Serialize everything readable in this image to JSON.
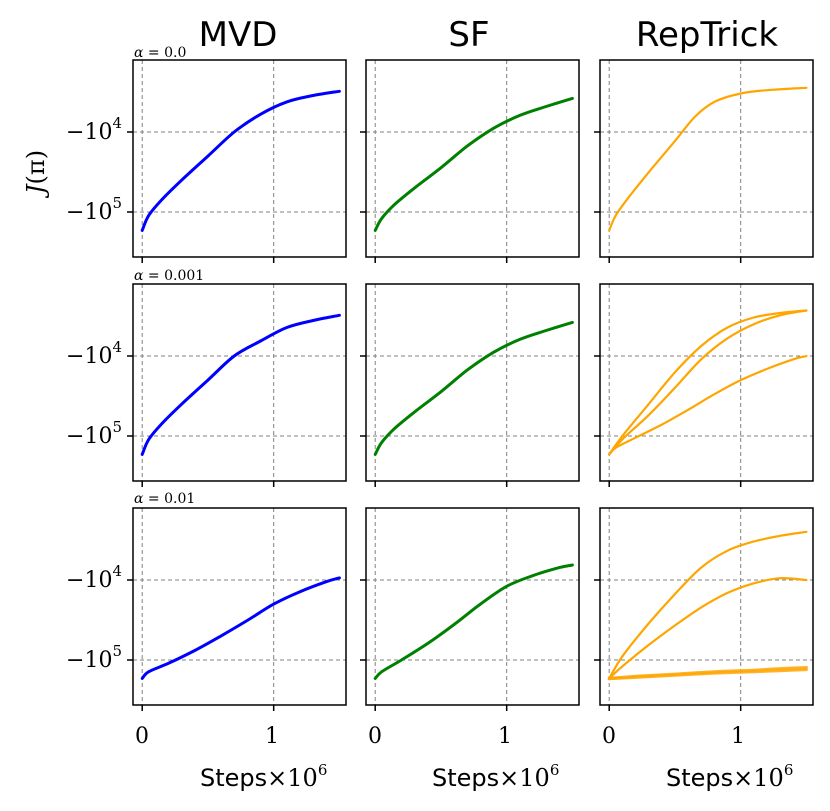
{
  "figure": {
    "column_titles": [
      "MVD",
      "SF",
      "RepTrick"
    ],
    "row_labels": [
      {
        "symbol": "α",
        "text": " = 0.0"
      },
      {
        "symbol": "α",
        "text": " = 0.001"
      },
      {
        "symbol": "α",
        "text": " = 0.01"
      }
    ],
    "ylabel": {
      "main": "J",
      "arg": "(π)"
    },
    "xlabel": {
      "main": "Steps",
      "times": "×10",
      "exp": "6"
    },
    "y_ticks": [
      {
        "base": "−10",
        "exp": "4",
        "value": -10000
      },
      {
        "base": "−10",
        "exp": "5",
        "value": -100000
      }
    ],
    "x_ticks": [
      "0",
      "1"
    ]
  },
  "colors": {
    "MVD": "#0000ff",
    "SF": "#008000",
    "RepTrick": "#ffa500",
    "grid": "#808080"
  },
  "chart_data": {
    "type": "line",
    "grid": true,
    "y_scale": "symlog",
    "x_unit": "Steps ×10^6",
    "xlim": [
      -0.07,
      1.55
    ],
    "panels": [
      {
        "row": 0,
        "col": 0,
        "series": [
          {
            "values": [
              [
                0,
                -170000
              ],
              [
                0.05,
                -110000
              ],
              [
                0.15,
                -70000
              ],
              [
                0.3,
                -40000
              ],
              [
                0.5,
                -20000
              ],
              [
                0.7,
                -10000
              ],
              [
                0.9,
                -6000
              ],
              [
                1.1,
                -4200
              ],
              [
                1.3,
                -3500
              ],
              [
                1.5,
                -3100
              ]
            ]
          }
        ]
      },
      {
        "row": 0,
        "col": 1,
        "series": [
          {
            "values": [
              [
                0,
                -170000
              ],
              [
                0.05,
                -120000
              ],
              [
                0.15,
                -80000
              ],
              [
                0.3,
                -50000
              ],
              [
                0.5,
                -28000
              ],
              [
                0.7,
                -15000
              ],
              [
                0.9,
                -9000
              ],
              [
                1.1,
                -6200
              ],
              [
                1.3,
                -4800
              ],
              [
                1.5,
                -3800
              ]
            ]
          }
        ]
      },
      {
        "row": 0,
        "col": 2,
        "series": [
          {
            "values": [
              [
                0,
                -170000
              ],
              [
                0.05,
                -110000
              ],
              [
                0.15,
                -65000
              ],
              [
                0.3,
                -32000
              ],
              [
                0.5,
                -13000
              ],
              [
                0.65,
                -6500
              ],
              [
                0.8,
                -4200
              ],
              [
                1.0,
                -3300
              ],
              [
                1.2,
                -3000
              ],
              [
                1.5,
                -2800
              ]
            ]
          }
        ]
      },
      {
        "row": 1,
        "col": 0,
        "series": [
          {
            "values": [
              [
                0,
                -170000
              ],
              [
                0.05,
                -110000
              ],
              [
                0.15,
                -70000
              ],
              [
                0.3,
                -40000
              ],
              [
                0.5,
                -20000
              ],
              [
                0.7,
                -10000
              ],
              [
                0.9,
                -6500
              ],
              [
                1.1,
                -4400
              ],
              [
                1.3,
                -3600
              ],
              [
                1.5,
                -3100
              ]
            ]
          }
        ]
      },
      {
        "row": 1,
        "col": 1,
        "series": [
          {
            "values": [
              [
                0,
                -170000
              ],
              [
                0.05,
                -120000
              ],
              [
                0.15,
                -80000
              ],
              [
                0.3,
                -50000
              ],
              [
                0.5,
                -28000
              ],
              [
                0.7,
                -15000
              ],
              [
                0.9,
                -9000
              ],
              [
                1.1,
                -6200
              ],
              [
                1.3,
                -4800
              ],
              [
                1.5,
                -3800
              ]
            ]
          }
        ]
      },
      {
        "row": 1,
        "col": 2,
        "series": [
          {
            "values": [
              [
                0,
                -170000
              ],
              [
                0.1,
                -100000
              ],
              [
                0.3,
                -40000
              ],
              [
                0.5,
                -16000
              ],
              [
                0.7,
                -7500
              ],
              [
                0.9,
                -4400
              ],
              [
                1.1,
                -3300
              ],
              [
                1.3,
                -2900
              ],
              [
                1.5,
                -2700
              ]
            ]
          },
          {
            "values": [
              [
                0,
                -170000
              ],
              [
                0.1,
                -110000
              ],
              [
                0.3,
                -55000
              ],
              [
                0.5,
                -25000
              ],
              [
                0.7,
                -11000
              ],
              [
                0.9,
                -6000
              ],
              [
                1.1,
                -4000
              ],
              [
                1.3,
                -3100
              ],
              [
                1.5,
                -2700
              ]
            ]
          },
          {
            "values": [
              [
                0,
                -170000
              ],
              [
                0.05,
                -140000
              ],
              [
                0.2,
                -105000
              ],
              [
                0.4,
                -72000
              ],
              [
                0.6,
                -47000
              ],
              [
                0.8,
                -30000
              ],
              [
                1.0,
                -20000
              ],
              [
                1.2,
                -14500
              ],
              [
                1.4,
                -11000
              ],
              [
                1.5,
                -10000
              ]
            ]
          }
        ]
      },
      {
        "row": 2,
        "col": 0,
        "series": [
          {
            "values": [
              [
                0,
                -170000
              ],
              [
                0.05,
                -140000
              ],
              [
                0.2,
                -110000
              ],
              [
                0.4,
                -76000
              ],
              [
                0.6,
                -50000
              ],
              [
                0.8,
                -32000
              ],
              [
                1.0,
                -20000
              ],
              [
                1.2,
                -14000
              ],
              [
                1.4,
                -10500
              ],
              [
                1.5,
                -9400
              ]
            ]
          }
        ]
      },
      {
        "row": 2,
        "col": 1,
        "series": [
          {
            "values": [
              [
                0,
                -170000
              ],
              [
                0.05,
                -140000
              ],
              [
                0.2,
                -100000
              ],
              [
                0.4,
                -62000
              ],
              [
                0.6,
                -36000
              ],
              [
                0.8,
                -20000
              ],
              [
                1.0,
                -12000
              ],
              [
                1.2,
                -8800
              ],
              [
                1.4,
                -7000
              ],
              [
                1.5,
                -6500
              ]
            ]
          }
        ]
      },
      {
        "row": 2,
        "col": 2,
        "series": [
          {
            "values": [
              [
                0,
                -170000
              ],
              [
                0.1,
                -90000
              ],
              [
                0.3,
                -35000
              ],
              [
                0.5,
                -15000
              ],
              [
                0.7,
                -7000
              ],
              [
                0.9,
                -4300
              ],
              [
                1.1,
                -3300
              ],
              [
                1.3,
                -2800
              ],
              [
                1.5,
                -2500
              ]
            ]
          },
          {
            "values": [
              [
                0,
                -170000
              ],
              [
                0.1,
                -120000
              ],
              [
                0.3,
                -65000
              ],
              [
                0.5,
                -37000
              ],
              [
                0.7,
                -22000
              ],
              [
                0.9,
                -14500
              ],
              [
                1.1,
                -11000
              ],
              [
                1.3,
                -9500
              ],
              [
                1.5,
                -10000
              ]
            ]
          },
          {
            "values": [
              [
                0,
                -170000
              ],
              [
                0.2,
                -160000
              ],
              [
                0.5,
                -150000
              ],
              [
                0.8,
                -140000
              ],
              [
                1.1,
                -134000
              ],
              [
                1.3,
                -128000
              ],
              [
                1.5,
                -124000
              ]
            ]
          },
          {
            "values": [
              [
                0,
                -172000
              ],
              [
                0.2,
                -165000
              ],
              [
                0.5,
                -155000
              ],
              [
                0.8,
                -146000
              ],
              [
                1.1,
                -140000
              ],
              [
                1.3,
                -136000
              ],
              [
                1.5,
                -132000
              ]
            ]
          }
        ]
      }
    ]
  }
}
